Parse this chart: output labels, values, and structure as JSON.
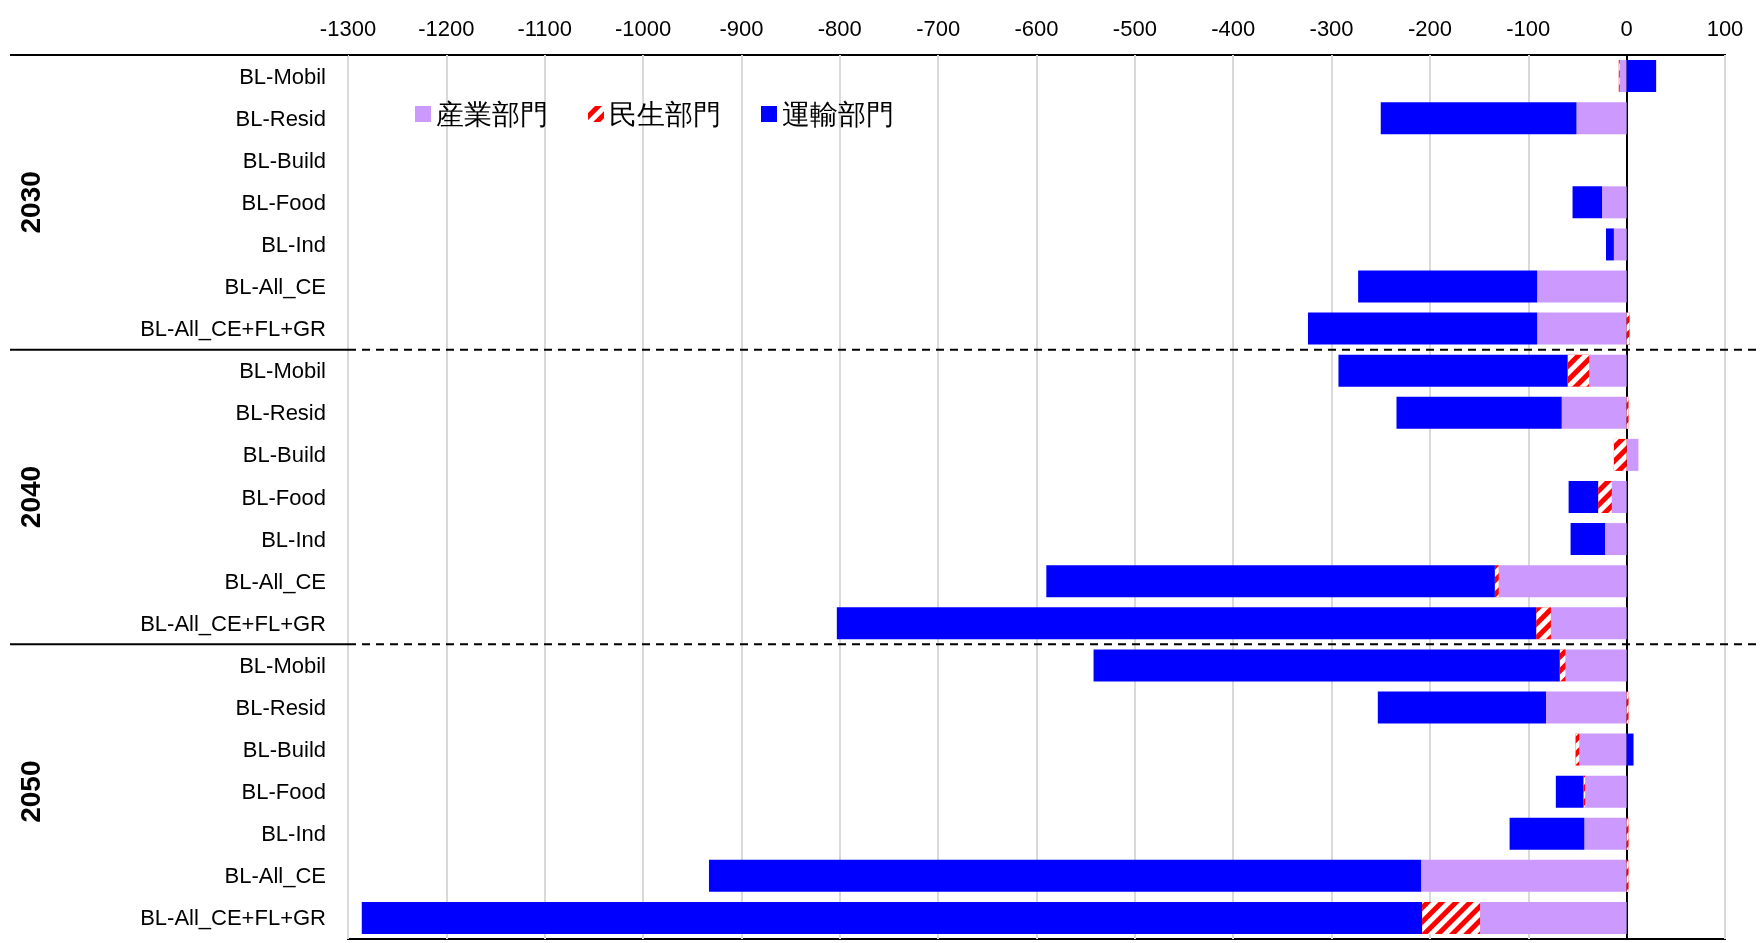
{
  "chart_data": {
    "type": "bar",
    "orientation": "horizontal",
    "stacked": true,
    "categories": [
      "BL-Mobil",
      "BL-Resid",
      "BL-Build",
      "BL-Food",
      "BL-Ind",
      "BL-All_CE",
      "BL-All_CE+FL+GR",
      "BL-Mobil",
      "BL-Resid",
      "BL-Build",
      "BL-Food",
      "BL-Ind",
      "BL-All_CE",
      "BL-All_CE+FL+GR",
      "BL-Mobil",
      "BL-Resid",
      "BL-Build",
      "BL-Food",
      "BL-Ind",
      "BL-All_CE",
      "BL-All_CE+FL+GR"
    ],
    "series": [
      {
        "name": "産業部門",
        "color": "#cc99ff",
        "values": [
          -7,
          -51,
          0,
          -25,
          -13,
          -91,
          -91,
          -38,
          -66,
          12,
          -15,
          -22,
          -130,
          -77,
          -62,
          -82,
          -48,
          -42,
          -43,
          -209,
          -149
        ]
      },
      {
        "name": "民生部門",
        "color": "#ff0000",
        "values": [
          -1,
          0,
          0,
          0,
          0,
          0,
          3,
          -22,
          2,
          -13,
          -14,
          0,
          -4,
          -15,
          -6,
          2,
          -4,
          -2,
          2,
          2,
          -59
        ]
      },
      {
        "name": "運輸部門",
        "color": "#0000ff",
        "values": [
          30,
          -199,
          0,
          -30,
          -8,
          -182,
          -233,
          -233,
          -168,
          0,
          -30,
          -35,
          -456,
          -711,
          -474,
          -171,
          7,
          -28,
          -76,
          -724,
          -1078
        ]
      }
    ],
    "xlim": [
      -1300,
      100
    ],
    "xticks": [
      -1300,
      -1200,
      -1100,
      -1000,
      -900,
      -800,
      -700,
      -600,
      -500,
      -400,
      -300,
      -200,
      -100,
      0,
      100
    ],
    "grid": "x",
    "legend": "top left",
    "annotations": [
      "2030",
      "2040",
      "2050"
    ]
  }
}
